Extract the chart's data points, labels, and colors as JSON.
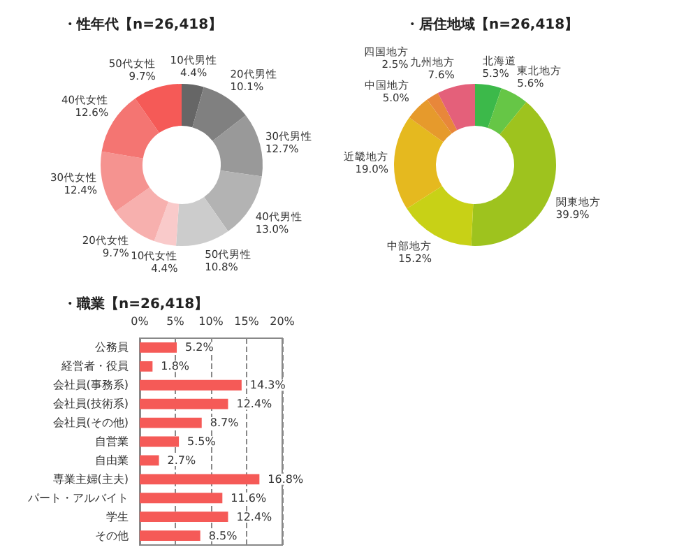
{
  "chart_data": [
    {
      "type": "donut",
      "title": "・性年代【n=26,418】",
      "categories": [
        "10代男性",
        "20代男性",
        "30代男性",
        "40代男性",
        "50代男性",
        "10代女性",
        "20代女性",
        "30代女性",
        "40代女性",
        "50代女性"
      ],
      "values": [
        4.4,
        10.1,
        12.7,
        13.0,
        10.8,
        4.4,
        9.7,
        12.4,
        12.6,
        9.7
      ],
      "value_labels": [
        "4.4%",
        "10.1%",
        "12.7%",
        "13.0%",
        "10.8%",
        "4.4%",
        "9.7%",
        "12.4%",
        "12.6%",
        "9.7%"
      ],
      "colors": [
        "#666666",
        "#808080",
        "#999999",
        "#b3b3b3",
        "#cccccc",
        "#f9caca",
        "#f7b0ae",
        "#f59390",
        "#f47572",
        "#f55a57"
      ],
      "legend": false
    },
    {
      "type": "donut",
      "title": "・居住地域【n=26,418】",
      "categories": [
        "北海道",
        "東北地方",
        "関東地方",
        "中部地方",
        "近畿地方",
        "中国地方",
        "四国地方",
        "九州地方"
      ],
      "values": [
        5.3,
        5.6,
        39.9,
        15.2,
        19.0,
        5.0,
        2.5,
        7.6
      ],
      "value_labels": [
        "5.3%",
        "5.6%",
        "39.9%",
        "15.2%",
        "19.0%",
        "5.0%",
        "2.5%",
        "7.6%"
      ],
      "colors": [
        "#3cb94a",
        "#66c646",
        "#9ec31e",
        "#c8d116",
        "#e5b91f",
        "#e69a2c",
        "#e8873a",
        "#e4607a"
      ],
      "legend": false
    },
    {
      "type": "bar",
      "orientation": "horizontal",
      "title": "・職業【n=26,418】",
      "categories": [
        "公務員",
        "経営者・役員",
        "会社員(事務系)",
        "会社員(技術系)",
        "会社員(その他)",
        "自営業",
        "自由業",
        "専業主婦(主夫)",
        "パート・アルバイト",
        "学生",
        "その他"
      ],
      "values": [
        5.2,
        1.8,
        14.3,
        12.4,
        8.7,
        5.5,
        2.7,
        16.8,
        11.6,
        12.4,
        8.5
      ],
      "value_labels": [
        "5.2%",
        "1.8%",
        "14.3%",
        "12.4%",
        "8.7%",
        "5.5%",
        "2.7%",
        "16.8%",
        "11.6%",
        "12.4%",
        "8.5%"
      ],
      "color": "#f55a57",
      "xlim": [
        0,
        20
      ],
      "xticks": [
        {
          "value": 0,
          "label": "0%"
        },
        {
          "value": 5,
          "label": "5%"
        },
        {
          "value": 10,
          "label": "10%"
        },
        {
          "value": 15,
          "label": "15%"
        },
        {
          "value": 20,
          "label": "20%"
        }
      ],
      "grid": "x",
      "legend": false
    }
  ]
}
